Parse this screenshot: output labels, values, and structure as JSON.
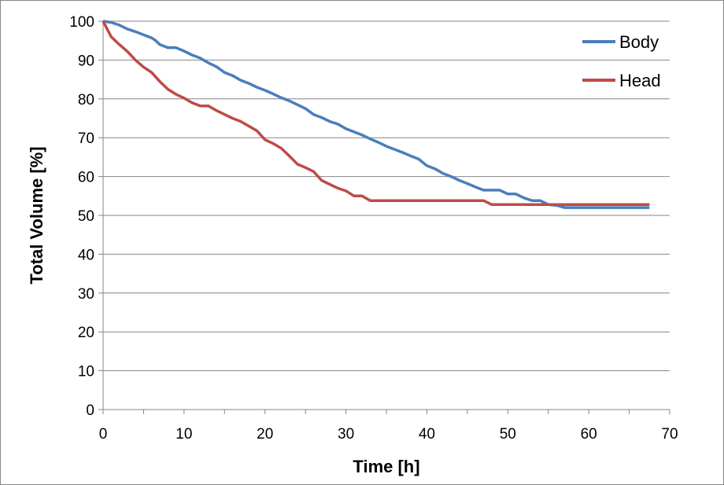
{
  "chart_data": {
    "type": "line",
    "xlabel": "Time [h]",
    "ylabel": "Total Volume [%]",
    "xlim": [
      0,
      70
    ],
    "ylim": [
      0,
      100
    ],
    "x_ticks": [
      0,
      10,
      20,
      30,
      40,
      50,
      60,
      70
    ],
    "y_ticks": [
      0,
      10,
      20,
      30,
      40,
      50,
      60,
      70,
      80,
      90,
      100
    ],
    "x_tick_labels": [
      "0",
      "10",
      "20",
      "30",
      "40",
      "50",
      "60",
      "70"
    ],
    "y_tick_labels": [
      "0",
      "10",
      "20",
      "30",
      "40",
      "50",
      "60",
      "70",
      "80",
      "90",
      "100"
    ],
    "grid": "horizontal",
    "legend_position": "top-right",
    "series": [
      {
        "name": "Body",
        "color": "#4a7ebb",
        "points": [
          [
            0,
            100
          ],
          [
            1,
            99.7
          ],
          [
            2,
            99
          ],
          [
            3,
            98
          ],
          [
            4,
            97.3
          ],
          [
            5,
            96.5
          ],
          [
            6,
            95.7
          ],
          [
            6.5,
            95
          ],
          [
            7,
            94
          ],
          [
            8,
            93.2
          ],
          [
            9,
            93.2
          ],
          [
            10,
            92.3
          ],
          [
            11,
            91.3
          ],
          [
            12,
            90.5
          ],
          [
            13,
            89.3
          ],
          [
            14,
            88.3
          ],
          [
            15,
            86.8
          ],
          [
            16,
            86
          ],
          [
            17,
            84.8
          ],
          [
            18,
            84
          ],
          [
            19,
            83
          ],
          [
            20,
            82.2
          ],
          [
            21,
            81.3
          ],
          [
            22,
            80.3
          ],
          [
            23,
            79.5
          ],
          [
            24,
            78.5
          ],
          [
            25,
            77.5
          ],
          [
            26,
            76
          ],
          [
            27,
            75.2
          ],
          [
            28,
            74.2
          ],
          [
            29,
            73.5
          ],
          [
            30,
            72.3
          ],
          [
            31,
            71.5
          ],
          [
            32,
            70.7
          ],
          [
            33,
            69.7
          ],
          [
            34,
            68.8
          ],
          [
            35,
            67.8
          ],
          [
            36,
            67
          ],
          [
            37,
            66.2
          ],
          [
            38,
            65.3
          ],
          [
            39,
            64.5
          ],
          [
            40,
            62.8
          ],
          [
            41,
            62
          ],
          [
            42,
            60.8
          ],
          [
            43,
            60
          ],
          [
            44,
            59
          ],
          [
            45,
            58.2
          ],
          [
            46,
            57.3
          ],
          [
            47,
            56.5
          ],
          [
            48,
            56.5
          ],
          [
            49,
            56.5
          ],
          [
            50,
            55.5
          ],
          [
            51,
            55.5
          ],
          [
            52,
            54.5
          ],
          [
            53,
            53.8
          ],
          [
            54,
            53.8
          ],
          [
            55,
            52.8
          ],
          [
            56,
            52.6
          ],
          [
            57,
            52
          ],
          [
            58,
            52
          ],
          [
            60,
            52
          ],
          [
            62,
            52
          ],
          [
            64,
            52
          ],
          [
            66,
            52
          ],
          [
            67.5,
            52
          ]
        ]
      },
      {
        "name": "Head",
        "color": "#be4b48",
        "points": [
          [
            0,
            100
          ],
          [
            1,
            96
          ],
          [
            2,
            94
          ],
          [
            3,
            92.2
          ],
          [
            4,
            90
          ],
          [
            5,
            88.2
          ],
          [
            6,
            86.8
          ],
          [
            7,
            84.5
          ],
          [
            8,
            82.5
          ],
          [
            9,
            81.2
          ],
          [
            10,
            80.2
          ],
          [
            11,
            79
          ],
          [
            12,
            78.2
          ],
          [
            13,
            78.2
          ],
          [
            14,
            77
          ],
          [
            15,
            76
          ],
          [
            16,
            75
          ],
          [
            17,
            74.2
          ],
          [
            18,
            73
          ],
          [
            19,
            71.8
          ],
          [
            20,
            69.5
          ],
          [
            21,
            68.5
          ],
          [
            22,
            67.3
          ],
          [
            23,
            65.3
          ],
          [
            24,
            63.2
          ],
          [
            25,
            62.3
          ],
          [
            26,
            61.3
          ],
          [
            27,
            59
          ],
          [
            28,
            58
          ],
          [
            29,
            57
          ],
          [
            30,
            56.3
          ],
          [
            31,
            55
          ],
          [
            32,
            55
          ],
          [
            33,
            53.8
          ],
          [
            35,
            53.8
          ],
          [
            40,
            53.8
          ],
          [
            45,
            53.8
          ],
          [
            47,
            53.8
          ],
          [
            48,
            52.8
          ],
          [
            50,
            52.8
          ],
          [
            55,
            52.8
          ],
          [
            60,
            52.8
          ],
          [
            65,
            52.8
          ],
          [
            67.5,
            52.8
          ]
        ]
      }
    ]
  }
}
